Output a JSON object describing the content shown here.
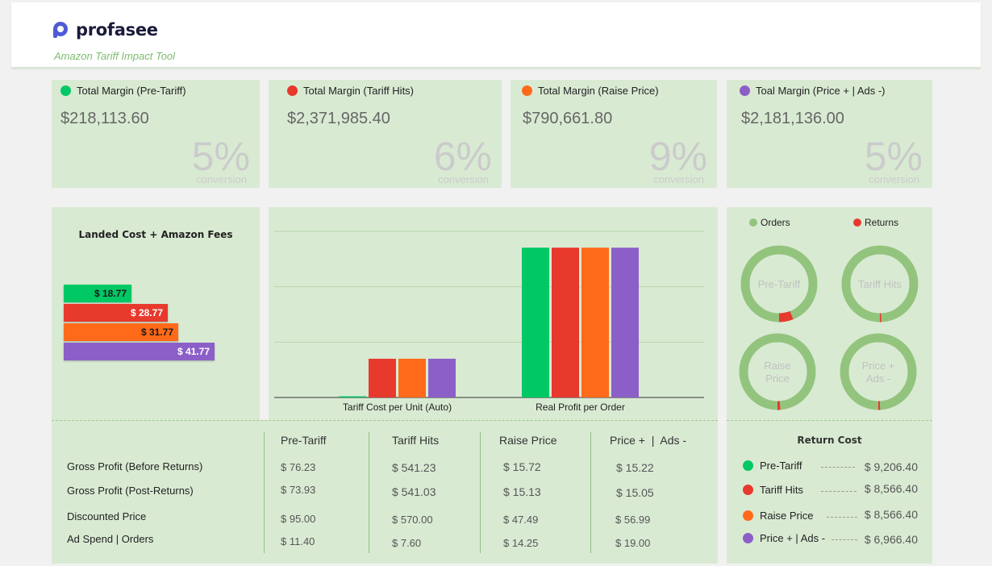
{
  "header": {
    "brand": "profasee",
    "subtitle": "Amazon Tariff Impact Tool"
  },
  "kpis": [
    {
      "title": "Total Margin (Pre-Tariff)",
      "value": "$218,113.60",
      "pct": "5%",
      "pct_label": "conversion",
      "color": "#00c864"
    },
    {
      "title": "Total Margin (Tariff Hits)",
      "value": "$2,371,985.40",
      "pct": "6%",
      "pct_label": "conversion",
      "color": "#e8392d"
    },
    {
      "title": "Total Margin (Raise Price)",
      "value": "$790,661.80",
      "pct": "9%",
      "pct_label": "conversion",
      "color": "#ff6a1a"
    },
    {
      "title": "Toal Margin (Price + | Ads -)",
      "value": "$2,181,136.00",
      "pct": "5%",
      "pct_label": "conversion",
      "color": "#8c5fc8"
    }
  ],
  "landed": {
    "title": "Landed Cost + Amazon Fees",
    "bars": [
      {
        "label": "$ 18.77",
        "value": 18.77,
        "color": "#00c864",
        "text_color": "#1a1a1a"
      },
      {
        "label": "$ 28.77",
        "value": 28.77,
        "color": "#e8392d",
        "text_color": "#ffffff"
      },
      {
        "label": "$ 31.77",
        "value": 31.77,
        "color": "#ff6a1a",
        "text_color": "#1a1a1a"
      },
      {
        "label": "$ 41.77",
        "value": 41.77,
        "color": "#8c5fc8",
        "text_color": "#ffffff"
      }
    ]
  },
  "chart_data": {
    "type": "bar",
    "categories": [
      "Tariff Cost per Unit (Auto)",
      "Real Profit per Order"
    ],
    "series": [
      {
        "values": [
          1.5,
          541.23
        ],
        "color": "#00c864"
      },
      {
        "values": [
          140,
          541.23
        ],
        "color": "#e8392d"
      },
      {
        "values": [
          140,
          541.23
        ],
        "color": "#ff6a1a"
      },
      {
        "values": [
          140,
          541.23
        ],
        "color": "#8c5fc8"
      }
    ],
    "ylim": [
      0,
      600
    ],
    "grid": true
  },
  "donuts": {
    "legend": [
      {
        "label": "Orders",
        "color": "#93c47d"
      },
      {
        "label": "Returns",
        "color": "#e8392d"
      }
    ],
    "items": [
      {
        "label": [
          "Pre-Tariff"
        ],
        "returns_fraction": 0.06
      },
      {
        "label": [
          "Tariff Hits"
        ],
        "returns_fraction": 0.006
      },
      {
        "label": [
          "Raise",
          "Price"
        ],
        "returns_fraction": 0.012
      },
      {
        "label": [
          "Price +",
          "Ads -"
        ],
        "returns_fraction": 0.008
      }
    ]
  },
  "table": {
    "columns": [
      "Pre-Tariff",
      "Tariff Hits",
      "Raise Price",
      "Price +  |  Ads -"
    ],
    "rows": [
      {
        "label": "Gross Profit (Before Returns)",
        "values": [
          "$ 76.23",
          "$ 541.23",
          "$ 15.72",
          "$ 15.22"
        ]
      },
      {
        "label": "Gross Profit (Post-Returns)",
        "values": [
          "$ 73.93",
          "$ 541.03",
          "$ 15.13",
          "$ 15.05"
        ]
      },
      {
        "label": "Discounted Price",
        "values": [
          "$ 95.00",
          "$ 570.00",
          "$ 47.49",
          "$ 56.99"
        ]
      },
      {
        "label": "Ad Spend | Orders",
        "values": [
          "$ 11.40",
          "$ 7.60",
          "$ 14.25",
          "$ 19.00"
        ]
      }
    ]
  },
  "return_cost": {
    "title": "Return Cost",
    "items": [
      {
        "label": "Pre-Tariff",
        "value": "$ 9,206.40",
        "color": "#00c864"
      },
      {
        "label": "Tariff Hits",
        "value": "$ 8,566.40",
        "color": "#e8392d"
      },
      {
        "label": "Raise Price",
        "value": "$ 8,566.40",
        "color": "#ff6a1a"
      },
      {
        "label": "Price + | Ads -",
        "value": "$ 6,966.40",
        "color": "#8c5fc8"
      }
    ]
  }
}
